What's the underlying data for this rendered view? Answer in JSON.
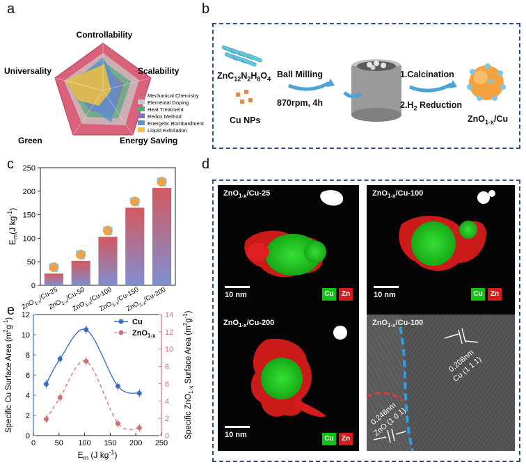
{
  "panels": {
    "a": "a",
    "b": "b",
    "c": "c",
    "d": "d",
    "e": "e"
  },
  "radar": {
    "axes": [
      "Controllability",
      "Scalability",
      "Energy Saving",
      "Green",
      "Universality"
    ],
    "legend": [
      {
        "label": "Mechanical Chemistry",
        "color": "#d9617a"
      },
      {
        "label": "Elemental Doping",
        "color": "#c8c8c8"
      },
      {
        "label": "Heat Treatment",
        "color": "#4faa78"
      },
      {
        "label": "Redox Method",
        "color": "#8a6fb0"
      },
      {
        "label": "Energetic Bombardment",
        "color": "#5b8fd0"
      },
      {
        "label": "Liquid Exfoliation",
        "color": "#f0c040"
      }
    ]
  },
  "schematic": {
    "precursor_base": "ZnC",
    "precursor_subs": [
      {
        "text": "12",
        "type": "sub"
      },
      {
        "text": "N",
        "type": "n"
      },
      {
        "text": "2",
        "type": "sub"
      },
      {
        "text": "H",
        "type": "n"
      },
      {
        "text": "8",
        "type": "sub"
      },
      {
        "text": "O",
        "type": "n"
      },
      {
        "text": "4",
        "type": "sub"
      }
    ],
    "cu_nps": "Cu NPs",
    "ball_milling": "Ball Milling",
    "speed": "870rpm, 4h",
    "step1": "1.Calcination",
    "step2": "2.H",
    "step2_sub": "2",
    "step2_rest": " Reduction",
    "product_base": "ZnO",
    "product_sub": "1-x",
    "product_rest": "/Cu"
  },
  "chart_data": [
    {
      "type": "bar",
      "categories": [
        "ZnO1-x/Cu-25",
        "ZnO1-x/Cu-50",
        "ZnO1-x/Cu-100",
        "ZnO1-x/Cu-150",
        "ZnO1-x/Cu-200"
      ],
      "values": [
        25,
        52,
        103,
        165,
        207
      ],
      "ylabel_base": "E",
      "ylabel_sub": "m",
      "ylabel_unit": "(J kg",
      "ylabel_sup": "-1",
      "ylabel_close": ")",
      "ylim": [
        0,
        250
      ],
      "yticks": [
        "0",
        "50",
        "100",
        "150",
        "200",
        "250"
      ],
      "cat_base": "ZnO",
      "cat_sub": "1-x",
      "cat_suffixes": [
        "/Cu-25",
        "/Cu-50",
        "/Cu-100",
        "/Cu-150",
        "/Cu-200"
      ]
    },
    {
      "type": "line",
      "x": [
        25,
        52,
        103,
        165,
        207
      ],
      "series": [
        {
          "name": "Cu",
          "values": [
            5.1,
            7.6,
            10.5,
            4.9,
            4.2
          ],
          "axis": "left",
          "color": "#3a6fc4"
        },
        {
          "name": "ZnO",
          "name_sub": "1-x",
          "values": [
            1.9,
            4.4,
            8.6,
            1.4,
            0.9
          ],
          "axis": "right",
          "color": "#d0707a"
        }
      ],
      "xlabel_base": "E",
      "xlabel_sub": "m",
      "xlabel_rest": " (J kg",
      "xlabel_sup": "-1",
      "xlabel_close": ")",
      "ylabel_left": "Specific Cu Surface Area (m",
      "ylabel_left_sup": "2",
      "ylabel_left_rest": "g",
      "ylabel_left_sup2": "-1",
      "ylabel_left_close": ")",
      "ylabel_right": "Specific ZnO",
      "ylabel_right_sub": "1-x",
      "ylabel_right_rest": " Surface Area (m",
      "ylabel_right_sup": "2",
      "ylabel_right_rest2": "g",
      "ylabel_right_sup2": "-1",
      "ylabel_right_close": ")",
      "xlim": [
        0,
        250
      ],
      "ylim_left": [
        0,
        12
      ],
      "ylim_right": [
        0,
        14
      ],
      "xticks": [
        "0",
        "50",
        "100",
        "150",
        "200",
        "250"
      ],
      "yticks_left": [
        "0",
        "2",
        "4",
        "6",
        "8",
        "10",
        "12"
      ],
      "yticks_right": [
        "0",
        "2",
        "4",
        "6",
        "8",
        "10",
        "12",
        "14"
      ]
    }
  ],
  "eds": [
    {
      "title_base": "ZnO",
      "title_sub": "1-x",
      "title_rest": "/Cu-25",
      "scale": "10 nm",
      "cu": "Cu",
      "zn": "Zn"
    },
    {
      "title_base": "ZnO",
      "title_sub": "1-x",
      "title_rest": "/Cu-100",
      "scale": "10 nm",
      "cu": "Cu",
      "zn": "Zn"
    },
    {
      "title_base": "ZnO",
      "title_sub": "1-x",
      "title_rest": "/Cu-200",
      "scale": "10 nm",
      "cu": "Cu",
      "zn": "Zn"
    }
  ],
  "hrtem": {
    "title_base": "ZnO",
    "title_sub": "1-x",
    "title_rest": "/Cu-100",
    "cu_d": "0.208nm",
    "cu_plane": "Cu (1 1 1)",
    "zno_d": "0.248nm",
    "zno_plane": "ZnO (1 0 1)"
  }
}
